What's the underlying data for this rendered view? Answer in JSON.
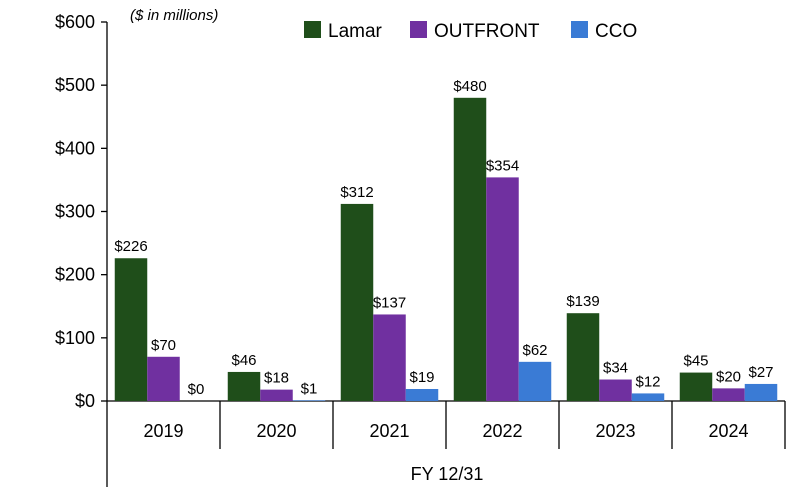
{
  "chart_data": {
    "type": "bar",
    "title": "",
    "unit_note": "($ in millions)",
    "xlabel": "FY 12/31",
    "ylabel": "",
    "ylim": [
      0,
      600
    ],
    "yticks": [
      0,
      100,
      200,
      300,
      400,
      500,
      600
    ],
    "ytick_labels": [
      "$0",
      "$100",
      "$200",
      "$300",
      "$400",
      "$500",
      "$600"
    ],
    "grid": false,
    "legend_position": "top-center",
    "categories": [
      "2019",
      "2020",
      "2021",
      "2022",
      "2023",
      "2024"
    ],
    "series": [
      {
        "name": "Lamar",
        "color": "#1f4e1a",
        "values": [
          226,
          46,
          312,
          480,
          139,
          45
        ],
        "labels": [
          "$226",
          "$46",
          "$312",
          "$480",
          "$139",
          "$45"
        ]
      },
      {
        "name": "OUTFRONT",
        "color": "#7030a0",
        "values": [
          70,
          18,
          137,
          354,
          34,
          20
        ],
        "labels": [
          "$70",
          "$18",
          "$137",
          "$354",
          "$34",
          "$20"
        ]
      },
      {
        "name": "CCO",
        "color": "#3a7bd5",
        "values": [
          0,
          1,
          19,
          62,
          12,
          27
        ],
        "labels": [
          "$0",
          "$1",
          "$19",
          "$62",
          "$12",
          "$27"
        ]
      }
    ]
  }
}
